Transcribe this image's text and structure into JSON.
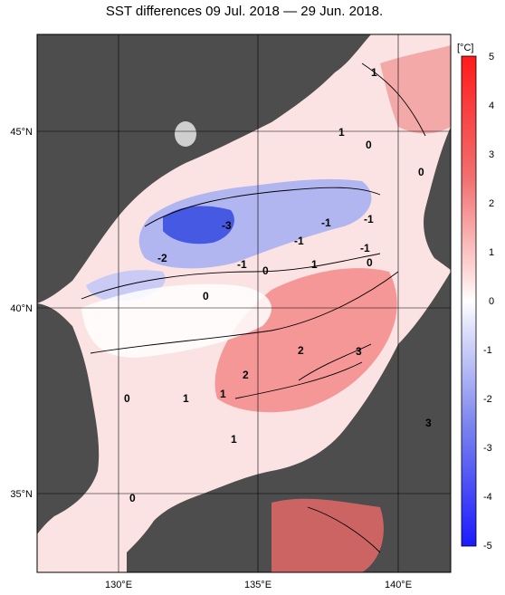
{
  "title": "SST differences 09 Jul. 2018 — 29 Jun. 2018.",
  "colorbar": {
    "unit": "[°C]",
    "ticks": [
      "5",
      "4",
      "3",
      "2",
      "1",
      "0",
      "-1",
      "-2",
      "-3",
      "-4",
      "-5"
    ],
    "min": -5,
    "max": 5
  },
  "axes": {
    "lat_labels": [
      "45°N",
      "40°N",
      "35°N"
    ],
    "lon_labels": [
      "130°E",
      "135°E",
      "140°E"
    ]
  },
  "contour_labels": [
    "1",
    "1",
    "0",
    "0",
    "-3",
    "-2",
    "-1",
    "-1",
    "-1",
    "0",
    "-1",
    "1",
    "-1",
    "0",
    "0",
    "2",
    "3",
    "2",
    "1",
    "1",
    "0",
    "1",
    "0",
    "3"
  ],
  "colors": {
    "land": "#4d4d4d",
    "cold": "#3b4fe0",
    "neutral": "#ffffff",
    "warm": "#e8303a"
  }
}
